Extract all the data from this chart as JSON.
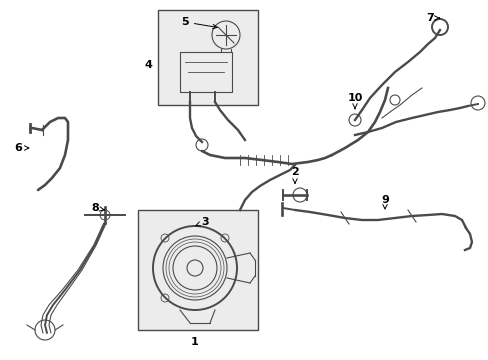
{
  "background_color": "#ffffff",
  "line_color": "#4a4a4a",
  "box_fill": "#ececec",
  "figsize": [
    4.89,
    3.6
  ],
  "dpi": 100,
  "lw_main": 1.4,
  "lw_thin": 0.8,
  "label_fontsize": 8
}
